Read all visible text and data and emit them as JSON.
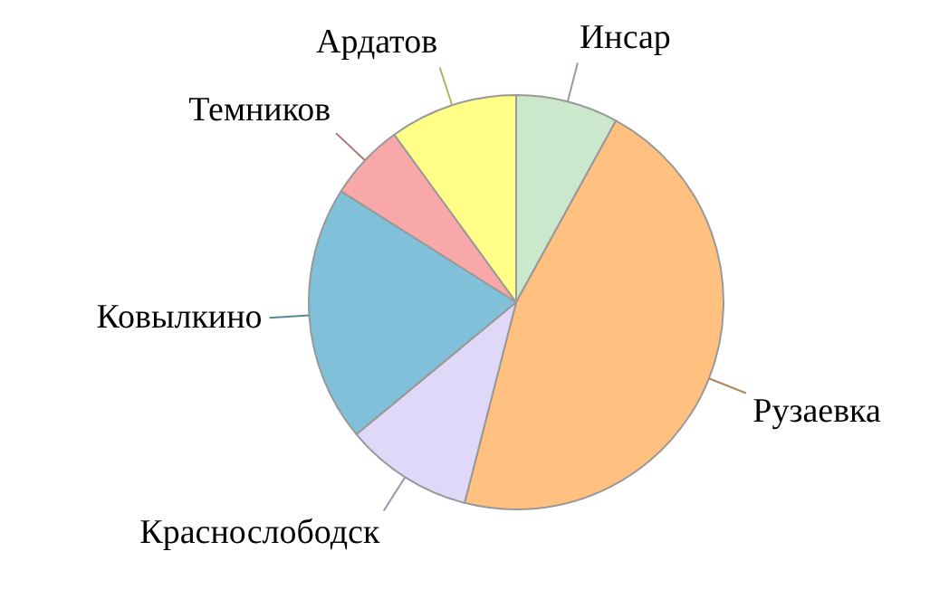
{
  "chart_data": {
    "type": "pie",
    "categories": [
      "Инсар",
      "Рузаевка",
      "Краснослободск",
      "Ковылкино",
      "Темников",
      "Ардатов"
    ],
    "values": [
      8,
      46,
      10,
      20,
      6,
      10
    ],
    "colors": [
      "#cce8cc",
      "#ffc080",
      "#e0d8f8",
      "#80c0d8",
      "#f8a8a8",
      "#ffff88"
    ],
    "legend": false
  }
}
